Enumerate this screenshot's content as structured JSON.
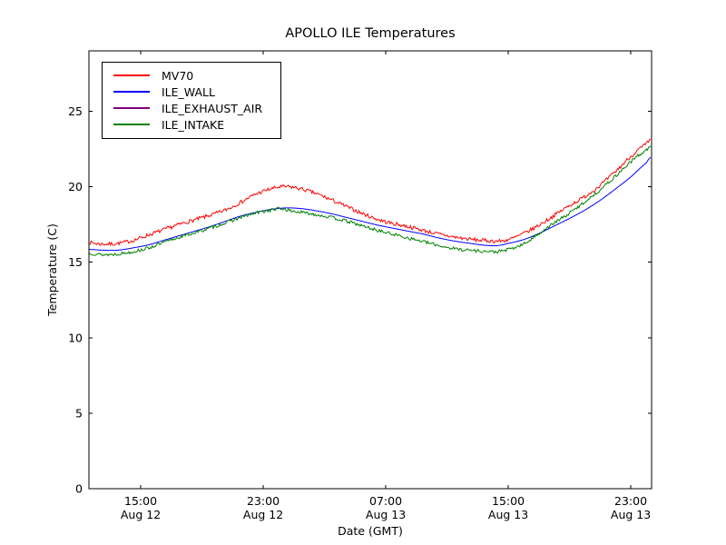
{
  "figure": {
    "title": "APOLLO ILE Temperatures",
    "background_color": "#ffffff"
  },
  "chart_data": {
    "type": "line",
    "title": "APOLLO ILE Temperatures",
    "xlabel": "Date (GMT)",
    "ylabel": "Temperature (C)",
    "ylim": [
      0,
      29
    ],
    "yticks": [
      0,
      5,
      10,
      15,
      20,
      25
    ],
    "xlim_hours": [
      -3.38,
      33.36
    ],
    "xticks": [
      {
        "hours": 0,
        "time": "15:00",
        "date": "Aug 12"
      },
      {
        "hours": 8,
        "time": "23:00",
        "date": "Aug 12"
      },
      {
        "hours": 16,
        "time": "07:00",
        "date": "Aug 13"
      },
      {
        "hours": 24,
        "time": "15:00",
        "date": "Aug 13"
      },
      {
        "hours": 32,
        "time": "23:00",
        "date": "Aug 13"
      }
    ],
    "grid": false,
    "legend": {
      "position": "upper-left"
    },
    "frame_color": "#000000",
    "series": [
      {
        "name": "MV70",
        "color": "#ff0000",
        "noise": 0.1,
        "seed": 7,
        "points": [
          [
            -3.38,
            16.3
          ],
          [
            -2.5,
            16.2
          ],
          [
            -1.5,
            16.25
          ],
          [
            -0.5,
            16.45
          ],
          [
            0.5,
            16.8
          ],
          [
            1.5,
            17.15
          ],
          [
            2.5,
            17.5
          ],
          [
            3.5,
            17.8
          ],
          [
            4.5,
            18.1
          ],
          [
            5.5,
            18.45
          ],
          [
            6.5,
            18.95
          ],
          [
            7.5,
            19.5
          ],
          [
            8.5,
            19.85
          ],
          [
            9.3,
            20.0
          ],
          [
            10.3,
            19.9
          ],
          [
            11.3,
            19.6
          ],
          [
            12.3,
            19.2
          ],
          [
            13.3,
            18.75
          ],
          [
            14.3,
            18.3
          ],
          [
            15.3,
            17.9
          ],
          [
            16.3,
            17.6
          ],
          [
            17.3,
            17.4
          ],
          [
            18.3,
            17.15
          ],
          [
            19.3,
            16.9
          ],
          [
            20.3,
            16.7
          ],
          [
            21.3,
            16.55
          ],
          [
            22.3,
            16.45
          ],
          [
            23.3,
            16.4
          ],
          [
            24.0,
            16.5
          ],
          [
            25.0,
            16.9
          ],
          [
            26.0,
            17.45
          ],
          [
            27.0,
            18.1
          ],
          [
            28.0,
            18.75
          ],
          [
            29.0,
            19.35
          ],
          [
            30.0,
            20.1
          ],
          [
            31.0,
            21.0
          ],
          [
            32.0,
            22.0
          ],
          [
            33.0,
            22.8
          ],
          [
            33.36,
            23.1
          ]
        ]
      },
      {
        "name": "ILE_WALL",
        "color": "#0000ff",
        "noise": 0,
        "seed": 1,
        "points": [
          [
            -3.38,
            15.85
          ],
          [
            -2.5,
            15.8
          ],
          [
            -1.5,
            15.8
          ],
          [
            -0.5,
            15.95
          ],
          [
            0.5,
            16.15
          ],
          [
            1.5,
            16.45
          ],
          [
            2.5,
            16.75
          ],
          [
            3.5,
            17.05
          ],
          [
            4.5,
            17.35
          ],
          [
            5.5,
            17.7
          ],
          [
            6.5,
            18.05
          ],
          [
            7.5,
            18.3
          ],
          [
            8.5,
            18.5
          ],
          [
            9.5,
            18.6
          ],
          [
            10.5,
            18.55
          ],
          [
            11.5,
            18.4
          ],
          [
            12.5,
            18.2
          ],
          [
            13.5,
            17.95
          ],
          [
            14.5,
            17.7
          ],
          [
            15.5,
            17.45
          ],
          [
            16.5,
            17.25
          ],
          [
            17.5,
            17.05
          ],
          [
            18.5,
            16.85
          ],
          [
            19.5,
            16.6
          ],
          [
            20.5,
            16.4
          ],
          [
            21.5,
            16.25
          ],
          [
            22.5,
            16.12
          ],
          [
            23.3,
            16.1
          ],
          [
            24.0,
            16.25
          ],
          [
            25.0,
            16.5
          ],
          [
            26.0,
            16.9
          ],
          [
            27.0,
            17.4
          ],
          [
            28.0,
            17.9
          ],
          [
            29.0,
            18.45
          ],
          [
            30.0,
            19.1
          ],
          [
            31.0,
            19.85
          ],
          [
            32.0,
            20.65
          ],
          [
            33.0,
            21.55
          ],
          [
            33.36,
            22.0
          ]
        ]
      },
      {
        "name": "ILE_EXHAUST_AIR",
        "color": "#800080",
        "noise": 0,
        "seed": 2,
        "points": [
          [
            -3.38,
            0
          ],
          [
            33.36,
            0
          ]
        ]
      },
      {
        "name": "ILE_INTAKE",
        "color": "#008000",
        "noise": 0.085,
        "seed": 13,
        "points": [
          [
            -3.38,
            15.6
          ],
          [
            -2.5,
            15.5
          ],
          [
            -1.5,
            15.55
          ],
          [
            -0.5,
            15.7
          ],
          [
            0.5,
            15.95
          ],
          [
            1.5,
            16.3
          ],
          [
            2.5,
            16.65
          ],
          [
            3.5,
            16.95
          ],
          [
            4.5,
            17.25
          ],
          [
            5.5,
            17.6
          ],
          [
            6.5,
            17.95
          ],
          [
            7.5,
            18.25
          ],
          [
            8.5,
            18.45
          ],
          [
            9.2,
            18.55
          ],
          [
            9.8,
            18.4
          ],
          [
            10.5,
            18.3
          ],
          [
            11.5,
            18.15
          ],
          [
            12.5,
            17.95
          ],
          [
            13.5,
            17.7
          ],
          [
            14.5,
            17.4
          ],
          [
            15.5,
            17.1
          ],
          [
            16.5,
            16.85
          ],
          [
            17.5,
            16.6
          ],
          [
            18.5,
            16.35
          ],
          [
            19.5,
            16.1
          ],
          [
            20.5,
            15.9
          ],
          [
            21.5,
            15.8
          ],
          [
            22.5,
            15.72
          ],
          [
            23.3,
            15.7
          ],
          [
            24.0,
            15.85
          ],
          [
            25.0,
            16.2
          ],
          [
            26.0,
            16.9
          ],
          [
            27.0,
            17.6
          ],
          [
            28.0,
            18.25
          ],
          [
            29.0,
            19.0
          ],
          [
            30.0,
            19.8
          ],
          [
            31.0,
            20.7
          ],
          [
            32.0,
            21.65
          ],
          [
            33.0,
            22.4
          ],
          [
            33.36,
            22.65
          ]
        ]
      }
    ]
  }
}
